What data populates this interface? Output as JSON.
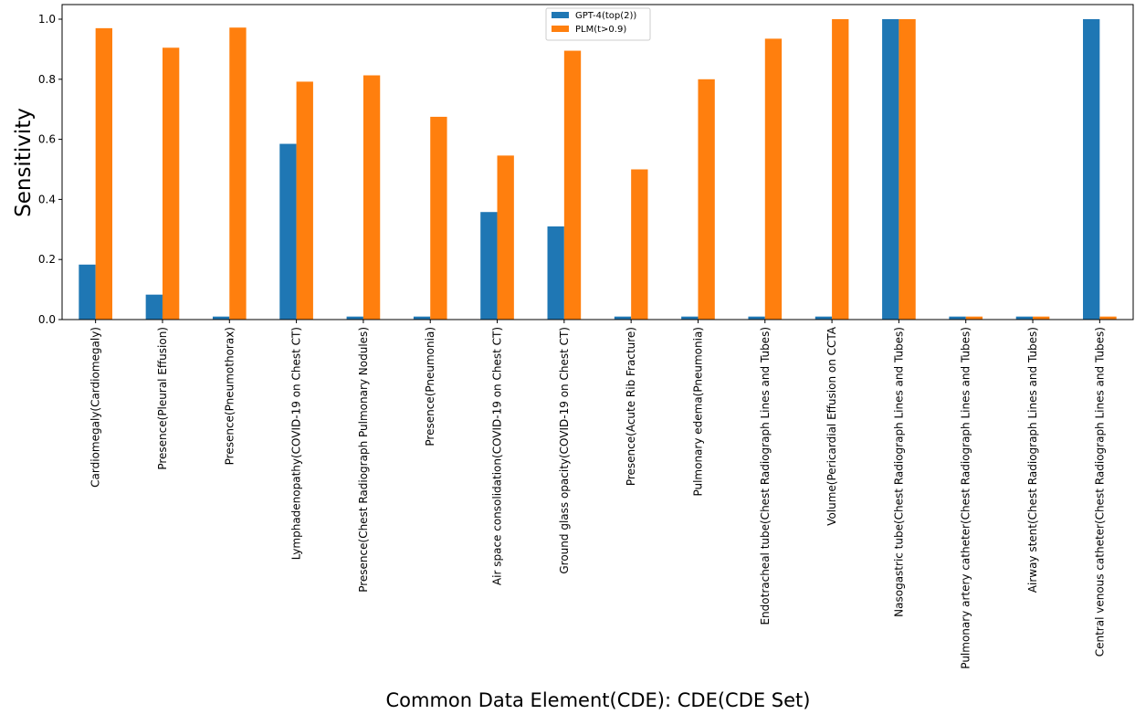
{
  "chart_data": {
    "type": "bar",
    "title": "",
    "xlabel": "Common Data Element(CDE): CDE(CDE Set)",
    "ylabel": "Sensitivity",
    "ylim": [
      0,
      1.0
    ],
    "yticks": [
      "0.0",
      "0.2",
      "0.4",
      "0.6",
      "0.8",
      "1.0"
    ],
    "grid": false,
    "legend_position": "top-center",
    "categories": [
      "Cardiomegaly(Cardiomegaly)",
      "Presence(Pleural Effusion)",
      "Presence(Pneumothorax)",
      "Lymphadenopathy(COVID-19 on Chest CT)",
      "Presence(Chest Radiograph Pulmonary Nodules)",
      "Presence(Pneumonia)",
      "Air space consolidation(COVID-19 on Chest CT)",
      "Ground glass opacity(COVID-19 on Chest CT)",
      "Presence(Acute Rib Fracture)",
      "Pulmonary edema(Pneumonia)",
      "Endotracheal tube(Chest Radiograph Lines and Tubes)",
      "Volume(Pericardial Effusion on CCTA",
      "Nasogastric tube(Chest Radiograph Lines and Tubes)",
      "Pulmonary artery catheter(Chest Radiograph Lines and Tubes)",
      "Airway stent(Chest Radiograph Lines and Tubes)",
      "Central venous catheter(Chest Radiograph Lines and Tubes)"
    ],
    "series": [
      {
        "name": "GPT-4(top(2))",
        "color": "#1f77b4",
        "values": [
          0.183,
          0.083,
          0.01,
          0.585,
          0.01,
          0.01,
          0.358,
          0.31,
          0.01,
          0.01,
          0.01,
          0.01,
          1.0,
          0.01,
          0.01,
          1.0
        ]
      },
      {
        "name": "PLM(t>0.9)",
        "color": "#ff7f0e",
        "values": [
          0.97,
          0.905,
          0.972,
          0.792,
          0.813,
          0.675,
          0.546,
          0.895,
          0.5,
          0.8,
          0.935,
          1.0,
          1.0,
          0.01,
          0.01,
          0.01
        ]
      }
    ]
  }
}
